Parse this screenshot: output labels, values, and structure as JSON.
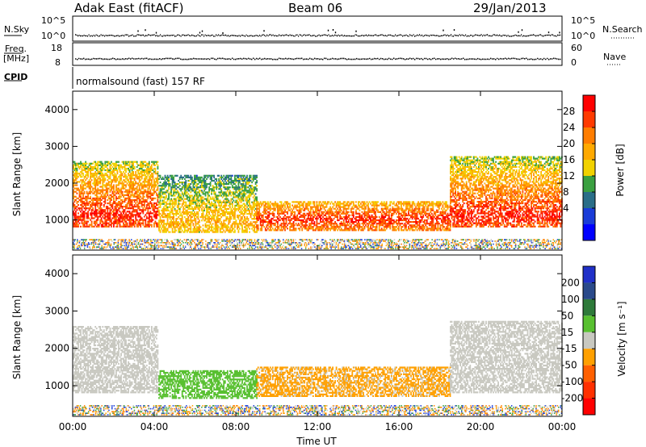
{
  "header": {
    "radar": "Adak East (fitACF)",
    "beam": "Beam 06",
    "date": "29/Jan/2013"
  },
  "strips": {
    "nsky_label": "N.Sky",
    "nsearch_label": "N.Search",
    "nsky_ticks": [
      "10^5",
      "10^0"
    ],
    "nsearch_ticks": [
      "10^5",
      "10^0"
    ],
    "freq_label_1": "Freq.",
    "freq_label_2": "[MHz]",
    "freq_ticks": [
      "18",
      "8"
    ],
    "nave_label": "Nave",
    "nave_ticks": [
      "60",
      "0"
    ],
    "cpid_label": "CPID",
    "cpid_text": "normalsound (fast) 157 RF"
  },
  "chart_data": [
    {
      "type": "heatmap",
      "panel": "power",
      "title": "",
      "xlabel": "Time UT",
      "ylabel": "Slant Range [km]",
      "xlim": [
        0,
        24
      ],
      "ylim": [
        180,
        4500
      ],
      "x_ticks": [
        "00:00",
        "04:00",
        "08:00",
        "12:00",
        "16:00",
        "20:00",
        "00:00"
      ],
      "y_ticks": [
        "1000",
        "2000",
        "3000",
        "4000"
      ],
      "colorbar_label": "Power [dB]",
      "colorbar_ticks": [
        "28",
        "24",
        "20",
        "16",
        "12",
        "8",
        "4"
      ],
      "colorbar_colors": [
        "#ff0000",
        "#ff3a00",
        "#ff7d00",
        "#ffa900",
        "#f2d200",
        "#3aa040",
        "#2a6e88",
        "#1a3cd8",
        "#0000ff"
      ],
      "echo_regions": [
        {
          "t0": 0.0,
          "t1": 4.2,
          "r_low": 800,
          "r_high": 2600,
          "peak_db": 30
        },
        {
          "t0": 4.2,
          "t1": 9.0,
          "r_low": 650,
          "r_high": 2200,
          "peak_db": 20
        },
        {
          "t0": 9.0,
          "t1": 18.5,
          "r_low": 700,
          "r_high": 1500,
          "peak_db": 30
        },
        {
          "t0": 18.5,
          "t1": 24.0,
          "r_low": 800,
          "r_high": 2700,
          "peak_db": 30
        }
      ]
    },
    {
      "type": "heatmap",
      "panel": "velocity",
      "title": "",
      "xlabel": "Time UT",
      "ylabel": "Slant Range [km]",
      "xlim": [
        0,
        24
      ],
      "ylim": [
        180,
        4500
      ],
      "x_ticks": [
        "00:00",
        "04:00",
        "08:00",
        "12:00",
        "16:00",
        "20:00",
        "00:00"
      ],
      "y_ticks": [
        "1000",
        "2000",
        "3000",
        "4000"
      ],
      "colorbar_label": "Velocity [m s⁻¹]",
      "colorbar_ticks": [
        "200",
        "100",
        "50",
        "15",
        "-15",
        "-50",
        "-100",
        "-200"
      ],
      "colorbar_colors": [
        "#2030c8",
        "#2a4a8a",
        "#2e7a3a",
        "#58c030",
        "#c8c8c0",
        "#ffa000",
        "#ff6000",
        "#ff3000",
        "#ff0000"
      ],
      "echo_regions": [
        {
          "t0": 0.0,
          "t1": 4.2,
          "r_low": 800,
          "r_high": 2600,
          "velocity": 0
        },
        {
          "t0": 4.2,
          "t1": 9.0,
          "r_low": 650,
          "r_high": 1400,
          "velocity": 60
        },
        {
          "t0": 9.0,
          "t1": 18.5,
          "r_low": 700,
          "r_high": 1500,
          "velocity": -30
        },
        {
          "t0": 18.5,
          "t1": 24.0,
          "r_low": 800,
          "r_high": 2700,
          "velocity": 0
        }
      ]
    }
  ],
  "colors": {
    "ground_scatter": "#c8c8c0",
    "frame": "#000000"
  }
}
